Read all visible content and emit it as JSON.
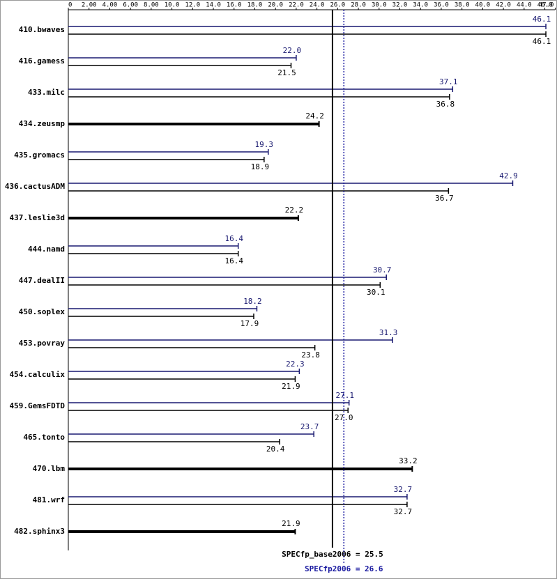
{
  "chart_data": {
    "type": "bar",
    "orientation": "horizontal",
    "categories": [
      "410.bwaves",
      "416.gamess",
      "433.milc",
      "434.zeusmp",
      "435.gromacs",
      "436.cactusADM",
      "437.leslie3d",
      "444.namd",
      "447.dealII",
      "450.soplex",
      "453.povray",
      "454.calculix",
      "459.GemsFDTD",
      "465.tonto",
      "470.lbm",
      "481.wrf",
      "482.sphinx3"
    ],
    "series": [
      {
        "color": "#191970",
        "values": [
          46.1,
          22.0,
          37.1,
          null,
          19.3,
          42.9,
          null,
          16.4,
          30.7,
          18.2,
          31.3,
          22.3,
          27.1,
          23.7,
          null,
          32.7,
          null
        ],
        "value_labels": [
          "46.1",
          "22.0",
          "37.1",
          null,
          "19.3",
          "42.9",
          null,
          "16.4",
          "30.7",
          "18.2",
          "31.3",
          "22.3",
          "27.1",
          "23.7",
          null,
          "32.7",
          null
        ]
      },
      {
        "color": "#000000",
        "values": [
          46.1,
          21.5,
          36.8,
          24.2,
          18.9,
          36.7,
          22.2,
          16.4,
          30.1,
          17.9,
          23.8,
          21.9,
          27.0,
          20.4,
          33.2,
          32.7,
          21.9
        ],
        "value_labels": [
          "46.1",
          "21.5",
          "36.8",
          "24.2",
          "18.9",
          "36.7",
          "22.2",
          "16.4",
          "30.1",
          "17.9",
          "23.8",
          "21.9",
          "27.0",
          "20.4",
          "33.2",
          "32.7",
          "21.9"
        ]
      }
    ],
    "xlim": [
      0,
      47.0
    ],
    "xticks": [
      0,
      {
        "value": 2,
        "label": "2.00"
      },
      {
        "value": 4,
        "label": "4.00"
      },
      {
        "value": 6,
        "label": "6.00"
      },
      {
        "value": 8,
        "label": "8.00"
      },
      {
        "value": 10,
        "label": "10.0"
      },
      {
        "value": 12,
        "label": "12.0"
      },
      {
        "value": 14,
        "label": "14.0"
      },
      {
        "value": 16,
        "label": "16.0"
      },
      {
        "value": 18,
        "label": "18.0"
      },
      {
        "value": 20,
        "label": "20.0"
      },
      {
        "value": 22,
        "label": "22.0"
      },
      {
        "value": 24,
        "label": "24.0"
      },
      {
        "value": 26,
        "label": "26.0"
      },
      {
        "value": 28,
        "label": "28.0"
      },
      {
        "value": 30,
        "label": "30.0"
      },
      {
        "value": 32,
        "label": "32.0"
      },
      {
        "value": 34,
        "label": "34.0"
      },
      {
        "value": 36,
        "label": "36.0"
      },
      {
        "value": 38,
        "label": "38.0"
      },
      {
        "value": 40,
        "label": "40.0"
      },
      {
        "value": 42,
        "label": "42.0"
      },
      {
        "value": 44,
        "label": "44.0"
      },
      {
        "value": 46,
        "label": "46.0"
      },
      {
        "value": 47,
        "label": "47.0"
      }
    ],
    "reference_lines": [
      {
        "value": 25.5,
        "label": "SPECfp_base2006 = 25.5",
        "color": "#000000",
        "dashed": false
      },
      {
        "value": 26.6,
        "label": "SPECfp2006 = 26.6",
        "color": "#1a1aa0",
        "dashed": true
      }
    ]
  }
}
